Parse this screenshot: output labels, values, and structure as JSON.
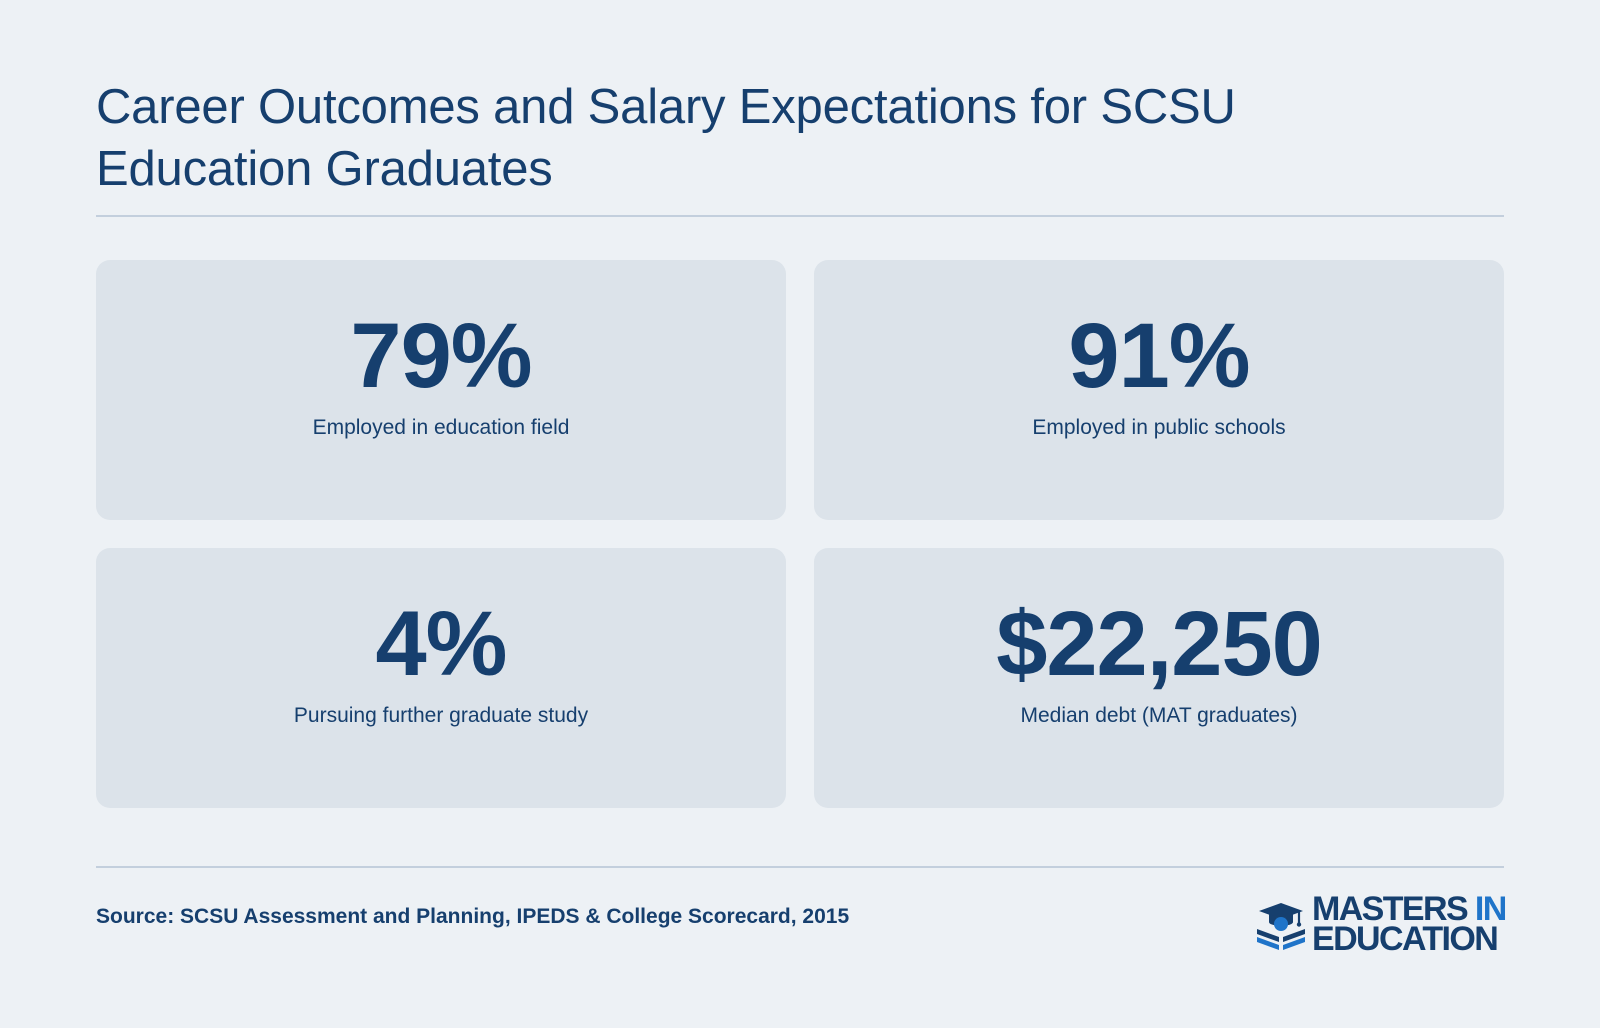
{
  "header": {
    "title": "Career Outcomes and Salary Expectations for SCSU Education Graduates"
  },
  "stats": [
    {
      "value": "79%",
      "label": "Employed in education field"
    },
    {
      "value": "91%",
      "label": "Employed in public schools"
    },
    {
      "value": "4%",
      "label": "Pursuing further graduate study"
    },
    {
      "value": "$22,250",
      "label": "Median debt (MAT graduates)"
    }
  ],
  "footer": {
    "source": "Source: SCSU Assessment and Planning, IPEDS & College Scorecard, 2015",
    "logo": {
      "word1": "MASTERS",
      "word2": "IN",
      "word3": "EDUCATION",
      "icon": "graduation-cap-book-icon"
    }
  },
  "colors": {
    "background": "#edf1f5",
    "card": "#dce3ea",
    "primary": "#163f6e",
    "accent": "#1f74c9",
    "rule": "#c3cfdd"
  }
}
